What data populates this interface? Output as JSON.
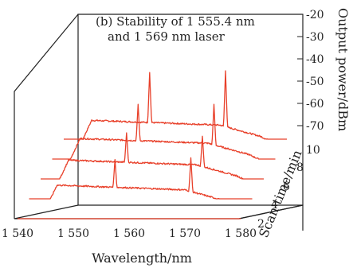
{
  "chart_data": {
    "type": "line",
    "title_lines": [
      "(b) Stability of 1 555.4 nm",
      "and 1 569 nm laser"
    ],
    "xlabel": "Wavelength/nm",
    "ylabel": "Output power/dBm",
    "zlabel": "Scan time/min",
    "x_ticks": [
      "1 540",
      "1 550",
      "1 560",
      "1 570",
      "1 580"
    ],
    "y_ticks": [
      "-20",
      "-30",
      "-40",
      "-50",
      "-60",
      "-70"
    ],
    "z_ticks": [
      "10",
      "8",
      "6",
      "4",
      "2"
    ],
    "xlim": [
      1540,
      1580
    ],
    "ylim": [
      -70,
      -20
    ],
    "line_color": "#e8402a",
    "series": [
      {
        "scan_time": 2,
        "floor_dbm": -72,
        "peaks": [
          {
            "x": 1555.4,
            "y": -72
          },
          {
            "x": 1569,
            "y": -72
          }
        ]
      },
      {
        "scan_time": 4,
        "floor_dbm": -64,
        "peaks": [
          {
            "x": 1555.4,
            "y": -49
          },
          {
            "x": 1569,
            "y": -48
          }
        ]
      },
      {
        "scan_time": 6,
        "floor_dbm": -61,
        "peaks": [
          {
            "x": 1555.4,
            "y": -45
          },
          {
            "x": 1569,
            "y": -47
          }
        ]
      },
      {
        "scan_time": 8,
        "floor_dbm": -60,
        "peaks": [
          {
            "x": 1555.4,
            "y": -40
          },
          {
            "x": 1569,
            "y": -40
          }
        ]
      },
      {
        "scan_time": 10,
        "floor_dbm": -61,
        "peaks": [
          {
            "x": 1555.4,
            "y": -33
          },
          {
            "x": 1569,
            "y": -32
          }
        ]
      }
    ]
  }
}
